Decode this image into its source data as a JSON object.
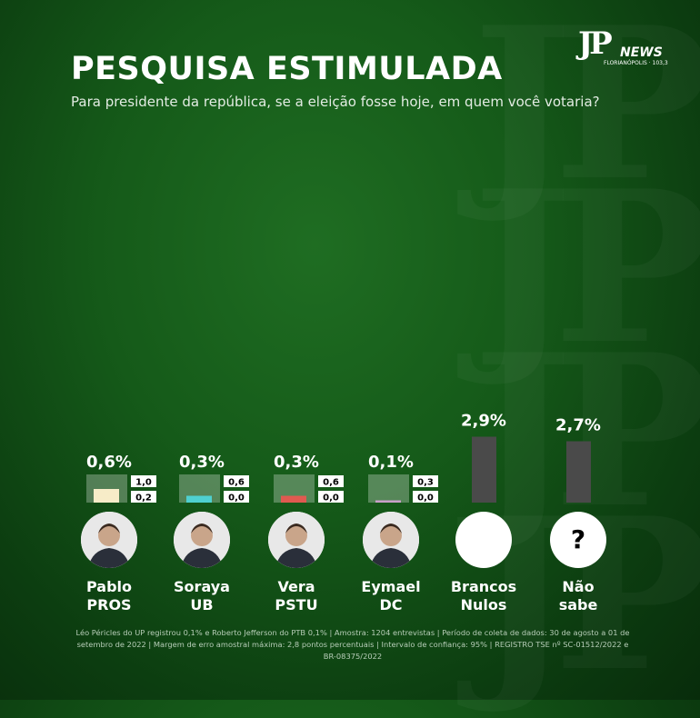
{
  "header": {
    "title": "PESQUISA ESTIMULADA",
    "subtitle": "Para presidente da república, se a eleição fosse hoje, em quem você votaria?"
  },
  "logo": {
    "mark": "JP",
    "name": "NEWS",
    "city": "FLORIANÓPOLIS · 103,3"
  },
  "chart_data": {
    "type": "bar",
    "title": "PESQUISA ESTIMULADA",
    "subtitle": "Para presidente da república, se a eleição fosse hoje, em quem você votaria?",
    "categories": [
      "Pablo PROS",
      "Soraya UB",
      "Vera PSTU",
      "Eymael DC",
      "Brancos Nulos",
      "Não sabe"
    ],
    "series": [
      {
        "values": [
          0.6,
          0.3,
          0.3,
          0.1,
          2.9,
          2.7
        ],
        "value_labels": [
          "0,6%",
          "0,3%",
          "0,3%",
          "0,1%",
          "2,9%",
          "2,7%"
        ],
        "colors": [
          "#f7ecc8",
          "#4fd0d0",
          "#e05a50",
          "#c9a0c9",
          "#4a4a4a",
          "#4a4a4a"
        ]
      }
    ],
    "range_upper": [
      "1,0",
      "0,6",
      "0,6",
      "0,3",
      null,
      null
    ],
    "range_lower": [
      "0,2",
      "0,0",
      "0,0",
      "0,0",
      null,
      null
    ],
    "candidates": [
      {
        "name": "Pablo",
        "party": "PROS",
        "photo": "candidate-photo"
      },
      {
        "name": "Soraya",
        "party": "UB",
        "photo": "candidate-photo"
      },
      {
        "name": "Vera",
        "party": "PSTU",
        "photo": "candidate-photo"
      },
      {
        "name": "Eymael",
        "party": "DC",
        "photo": "candidate-photo"
      },
      {
        "name": "Brancos",
        "party": "Nulos",
        "photo": "blank-circle"
      },
      {
        "name": "Não",
        "party": "sabe",
        "photo": "question-mark-icon",
        "symbol": "?"
      }
    ],
    "legend": "none",
    "grid": false
  },
  "footnote": "Léo Péricles do UP registrou 0,1% e Roberto Jefferson do PTB 0,1% | Amostra: 1204 entrevistas | Período de coleta de dados: 30 de agosto a 01 de setembro de 2022 | Margem de erro amostral máxima: 2,8 pontos percentuais | Intervalo de confiança: 95% | REGISTRO TSE nº SC-01512/2022 e BR-08375/2022"
}
